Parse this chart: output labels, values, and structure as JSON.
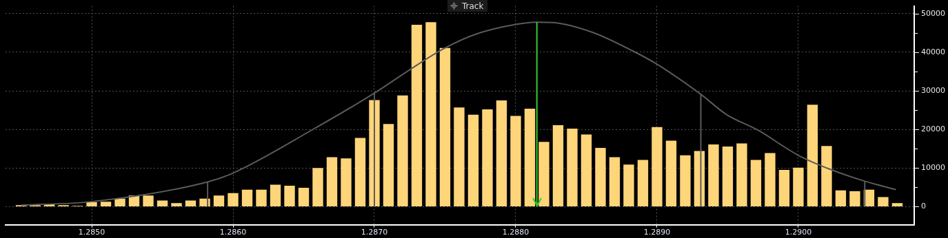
{
  "chart_data": {
    "type": "histogram",
    "bins": [
      1.28445,
      1.28455,
      1.28465,
      1.28475,
      1.28485,
      1.28495,
      1.28505,
      1.28515,
      1.28525,
      1.28535,
      1.28545,
      1.28555,
      1.28565,
      1.28575,
      1.28585,
      1.28595,
      1.28605,
      1.28615,
      1.28625,
      1.28635,
      1.28645,
      1.28655,
      1.28665,
      1.28675,
      1.28685,
      1.28695,
      1.28705,
      1.28715,
      1.28725,
      1.28735,
      1.28745,
      1.28755,
      1.28765,
      1.28775,
      1.28785,
      1.28795,
      1.28805,
      1.28815,
      1.28825,
      1.28835,
      1.28845,
      1.28855,
      1.28865,
      1.28875,
      1.28885,
      1.28895,
      1.28905,
      1.28915,
      1.28925,
      1.28935,
      1.28945,
      1.28955,
      1.28965,
      1.28975,
      1.28985,
      1.28995,
      1.29005,
      1.29015,
      1.29025,
      1.29035,
      1.29045,
      1.29055,
      1.29065,
      1.29075
    ],
    "values": [
      400,
      400,
      600,
      400,
      200,
      1200,
      1300,
      2100,
      2900,
      2900,
      1600,
      900,
      1600,
      2100,
      2900,
      3500,
      4400,
      4400,
      5700,
      5400,
      4900,
      10000,
      12800,
      12500,
      17800,
      27600,
      21400,
      28800,
      47100,
      47800,
      41100,
      25700,
      23800,
      25200,
      27500,
      23500,
      25400,
      16800,
      21100,
      20200,
      18700,
      15200,
      12800,
      10900,
      12100,
      20600,
      17100,
      13300,
      14400,
      16100,
      15600,
      16400,
      12100,
      13900,
      9500,
      10100,
      26400,
      15700,
      4200,
      4000,
      4400,
      2500,
      900
    ],
    "color": "#ffd57a",
    "series": [
      {
        "type": "line",
        "color": "#5a5a5a",
        "x": [
          1.2845,
          1.285,
          1.28582,
          1.286,
          1.28656,
          1.287,
          1.28726,
          1.28749,
          1.28772,
          1.288,
          1.28815,
          1.28826,
          1.28854,
          1.28883,
          1.289,
          1.28931,
          1.28949,
          1.28971,
          1.29,
          1.29023,
          1.29047,
          1.29069
        ],
        "values": [
          400,
          1300,
          6400,
          8700,
          19900,
          29400,
          35700,
          40900,
          44700,
          47200,
          47800,
          47700,
          45200,
          40300,
          36900,
          29100,
          23900,
          19900,
          13300,
          9600,
          6600,
          4400
        ]
      }
    ],
    "ref_lines": [
      {
        "axis": "x",
        "value": 1.28582
      },
      {
        "axis": "x",
        "value": 1.287
      },
      {
        "axis": "x",
        "value": 1.28815,
        "color": "#33cc33"
      },
      {
        "axis": "x",
        "value": 1.28931
      },
      {
        "axis": "x",
        "value": 1.29047
      }
    ],
    "xlim": [
      1.28439,
      1.29082
    ],
    "xticks": [
      {
        "value": 1.285,
        "label": "1.2850"
      },
      {
        "value": 1.286,
        "label": "1.2860"
      },
      {
        "value": 1.287,
        "label": "1.2870"
      },
      {
        "value": 1.288,
        "label": "1.2880"
      },
      {
        "value": 1.289,
        "label": "1.2890"
      },
      {
        "value": 1.29,
        "label": "1.2900"
      }
    ],
    "ylim": [
      -4700,
      52000
    ],
    "yticks": [
      0,
      {
        "value": 5000,
        "label": null
      },
      10000,
      {
        "value": 15000,
        "label": null
      },
      20000,
      {
        "value": 25000,
        "label": null
      },
      30000,
      {
        "value": 35000,
        "label": null
      },
      40000,
      {
        "value": 45000,
        "label": null
      },
      50000
    ],
    "grid": true,
    "legend": false,
    "annotations": [
      "Track"
    ]
  }
}
